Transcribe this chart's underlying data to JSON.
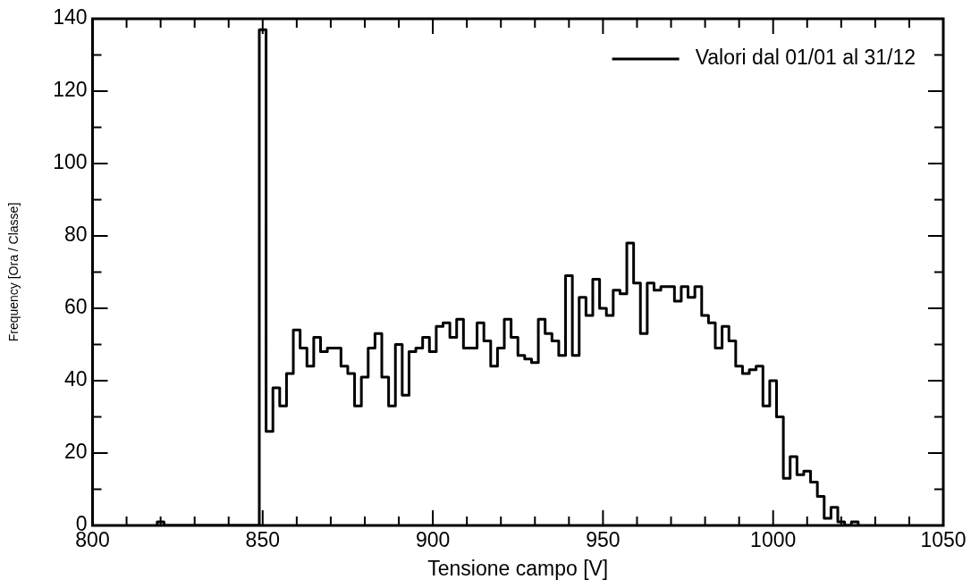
{
  "chart_data": {
    "type": "histogram",
    "xlabel": "Tensione campo [V]",
    "ylabel": "Frequency [Ora / Classe]",
    "bins": [
      819,
      821,
      823,
      825,
      827,
      829,
      831,
      833,
      835,
      837,
      839,
      841,
      843,
      845,
      847,
      849,
      851,
      853,
      855,
      857,
      859,
      861,
      863,
      865,
      867,
      869,
      871,
      873,
      875,
      877,
      879,
      881,
      883,
      885,
      887,
      889,
      891,
      893,
      895,
      897,
      899,
      901,
      903,
      905,
      907,
      909,
      911,
      913,
      915,
      917,
      919,
      921,
      923,
      925,
      927,
      929,
      931,
      933,
      935,
      937,
      939,
      941,
      943,
      945,
      947,
      949,
      951,
      953,
      955,
      957,
      959,
      961,
      963,
      965,
      967,
      969,
      971,
      973,
      975,
      977,
      979,
      981,
      983,
      985,
      987,
      989,
      991,
      993,
      995,
      997,
      999,
      1001,
      1003,
      1005,
      1007,
      1009,
      1011,
      1013,
      1015,
      1017,
      1019,
      1021,
      1023,
      1025
    ],
    "series": [
      {
        "name": "Valori dal 01/01 al 31/12",
        "color": "#000000",
        "values": [
          1,
          0,
          0,
          0,
          0,
          0,
          0,
          0,
          0,
          0,
          0,
          0,
          0,
          0,
          0,
          137,
          26,
          38,
          33,
          42,
          54,
          49,
          44,
          52,
          48,
          49,
          49,
          44,
          42,
          33,
          41,
          49,
          53,
          41,
          33,
          50,
          36,
          48,
          49,
          52,
          48,
          55,
          56,
          52,
          57,
          49,
          49,
          56,
          51,
          44,
          49,
          57,
          52,
          47,
          46,
          45,
          57,
          53,
          51,
          47,
          69,
          47,
          63,
          58,
          68,
          60,
          58,
          65,
          64,
          78,
          67,
          53,
          67,
          65,
          66,
          66,
          62,
          66,
          63,
          66,
          58,
          56,
          49,
          55,
          51,
          44,
          42,
          43,
          44,
          33,
          40,
          30,
          13,
          19,
          14,
          15,
          12,
          8,
          2,
          5,
          1,
          0,
          1
        ]
      }
    ],
    "xlim": [
      800,
      1050
    ],
    "xticks": [
      800,
      {
        "value": 810,
        "label": null
      },
      {
        "value": 820,
        "label": null
      },
      {
        "value": 830,
        "label": null
      },
      {
        "value": 840,
        "label": null
      },
      850,
      {
        "value": 860,
        "label": null
      },
      {
        "value": 870,
        "label": null
      },
      {
        "value": 880,
        "label": null
      },
      {
        "value": 890,
        "label": null
      },
      900,
      {
        "value": 910,
        "label": null
      },
      {
        "value": 920,
        "label": null
      },
      {
        "value": 930,
        "label": null
      },
      {
        "value": 940,
        "label": null
      },
      950,
      {
        "value": 960,
        "label": null
      },
      {
        "value": 970,
        "label": null
      },
      {
        "value": 980,
        "label": null
      },
      {
        "value": 990,
        "label": null
      },
      1000,
      {
        "value": 1010,
        "label": null
      },
      {
        "value": 1020,
        "label": null
      },
      {
        "value": 1030,
        "label": null
      },
      {
        "value": 1040,
        "label": null
      },
      1050
    ],
    "ylim": [
      0,
      140
    ],
    "yticks": [
      0,
      {
        "value": 10,
        "label": null
      },
      20,
      {
        "value": 30,
        "label": null
      },
      40,
      {
        "value": 50,
        "label": null
      },
      60,
      {
        "value": 70,
        "label": null
      },
      80,
      {
        "value": 90,
        "label": null
      },
      100,
      {
        "value": 110,
        "label": null
      },
      120,
      {
        "value": 130,
        "label": null
      },
      140
    ],
    "legend": "top right",
    "line_style": "solid"
  }
}
